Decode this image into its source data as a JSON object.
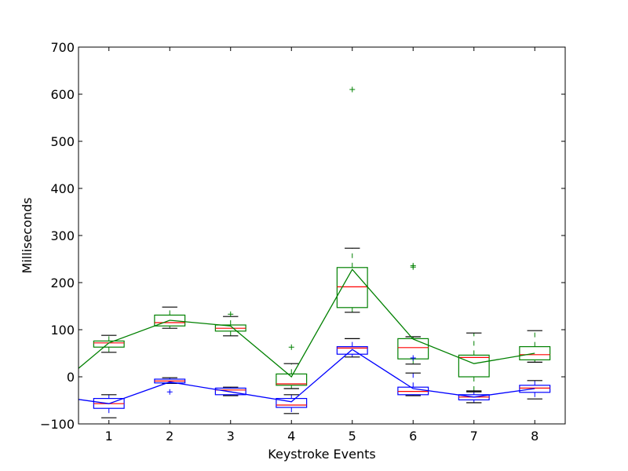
{
  "chart_data": {
    "type": "box",
    "xlabel": "Keystroke Events",
    "ylabel": "Milliseconds",
    "xlim": [
      0.5,
      8.5
    ],
    "ylim": [
      -100,
      700
    ],
    "xticks": [
      1,
      2,
      3,
      4,
      5,
      6,
      7,
      8
    ],
    "yticks": [
      -100,
      0,
      100,
      200,
      300,
      400,
      500,
      600,
      700
    ],
    "grid": false,
    "series": [
      {
        "color": "#008000",
        "median_color": "#ff0000",
        "boxes": [
          {
            "x": 1,
            "whislo": 52,
            "q1": 63,
            "med": 72,
            "q3": 76,
            "whishi": 88,
            "fliers": []
          },
          {
            "x": 2,
            "whislo": 103,
            "q1": 108,
            "med": 115,
            "q3": 131,
            "whishi": 148,
            "fliers": []
          },
          {
            "x": 3,
            "whislo": 87,
            "q1": 97,
            "med": 103,
            "q3": 110,
            "whishi": 128,
            "fliers": [
              133
            ]
          },
          {
            "x": 4,
            "whislo": -25,
            "q1": -18,
            "med": -15,
            "q3": 6,
            "whishi": 28,
            "fliers": [
              63
            ]
          },
          {
            "x": 5,
            "whislo": 137,
            "q1": 147,
            "med": 191,
            "q3": 232,
            "whishi": 273,
            "fliers": [
              610
            ]
          },
          {
            "x": 6,
            "whislo": 27,
            "q1": 38,
            "med": 62,
            "q3": 81,
            "whishi": 85,
            "fliers": [
              233,
              236
            ]
          },
          {
            "x": 7,
            "whislo": -30,
            "q1": 0,
            "med": 41,
            "q3": 46,
            "whishi": 93,
            "fliers": []
          },
          {
            "x": 8,
            "whislo": 31,
            "q1": 36,
            "med": 47,
            "q3": 64,
            "whishi": 98,
            "fliers": []
          }
        ],
        "mean_line": {
          "x": [
            0.5,
            1,
            2,
            3,
            4,
            5,
            6,
            7,
            8
          ],
          "y": [
            18,
            72,
            120,
            108,
            0,
            228,
            80,
            28,
            50
          ]
        }
      },
      {
        "color": "#0000ff",
        "median_color": "#ff0000",
        "boxes": [
          {
            "x": 1,
            "whislo": -87,
            "q1": -67,
            "med": -57,
            "q3": -46,
            "whishi": -38,
            "fliers": []
          },
          {
            "x": 2,
            "whislo": -14,
            "q1": -13,
            "med": -9,
            "q3": -5,
            "whishi": -2,
            "fliers": [
              -32
            ]
          },
          {
            "x": 3,
            "whislo": -40,
            "q1": -38,
            "med": -28,
            "q3": -24,
            "whishi": -22,
            "fliers": []
          },
          {
            "x": 4,
            "whislo": -78,
            "q1": -65,
            "med": -60,
            "q3": -46,
            "whishi": -38,
            "fliers": []
          },
          {
            "x": 5,
            "whislo": 42,
            "q1": 48,
            "med": 61,
            "q3": 64,
            "whishi": 81,
            "fliers": []
          },
          {
            "x": 6,
            "whislo": -40,
            "q1": -38,
            "med": -31,
            "q3": -22,
            "whishi": 8,
            "fliers": [
              40
            ]
          },
          {
            "x": 7,
            "whislo": -55,
            "q1": -49,
            "med": -43,
            "q3": -38,
            "whishi": -32,
            "fliers": []
          },
          {
            "x": 8,
            "whislo": -47,
            "q1": -33,
            "med": -24,
            "q3": -18,
            "whishi": -8,
            "fliers": []
          }
        ],
        "mean_line": {
          "x": [
            0.5,
            1,
            2,
            3,
            4,
            5,
            6,
            7,
            8
          ],
          "y": [
            -48,
            -57,
            -11,
            -32,
            -53,
            58,
            -25,
            -43,
            -25
          ]
        }
      }
    ]
  }
}
